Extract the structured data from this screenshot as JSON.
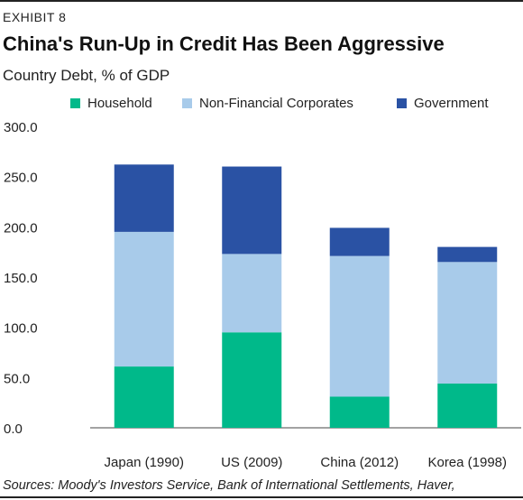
{
  "header": {
    "exhibit": "EXHIBIT 8",
    "title": "China's Run-Up in Credit Has Been Aggressive",
    "subtitle": "Country Debt, % of GDP"
  },
  "source": "Sources: Moody's Investors Service, Bank of International Settlements, Haver,",
  "chart_data": {
    "type": "bar",
    "stacked": true,
    "title": "China's Run-Up in Credit Has Been Aggressive",
    "subtitle": "Country Debt, % of GDP",
    "categories": [
      "Japan (1990)",
      "US (2009)",
      "China (2012)",
      "Korea (1998)"
    ],
    "series": [
      {
        "name": "Household",
        "color": "#00b98a",
        "values": [
          61,
          95,
          31,
          44
        ]
      },
      {
        "name": "Non-Financial Corporates",
        "color": "#a8cbea",
        "values": [
          134,
          78,
          140,
          121
        ]
      },
      {
        "name": "Government",
        "color": "#2a52a4",
        "values": [
          67,
          87,
          28,
          15
        ]
      }
    ],
    "ylim": [
      0,
      300
    ],
    "yticks": [
      "0.0",
      "50.0",
      "100.0",
      "150.0",
      "200.0",
      "250.0",
      "300.0"
    ],
    "grid": false,
    "legend": "top"
  }
}
